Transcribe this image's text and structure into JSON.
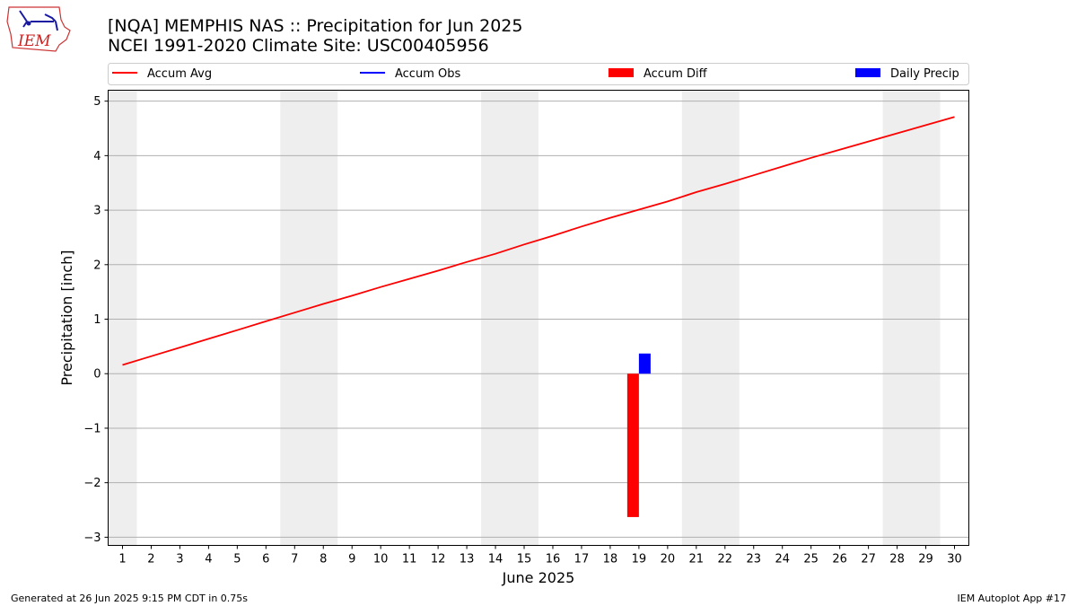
{
  "header": {
    "title_line1": "[NQA] MEMPHIS NAS :: Precipitation for Jun 2025",
    "title_line2": "NCEI 1991-2020 Climate Site: USC00405956",
    "logo_text": "IEM"
  },
  "footer": {
    "left": "Generated at 26 Jun 2025 9:15 PM CDT in 0.75s",
    "right": "IEM Autoplot App #17"
  },
  "chart_data": {
    "type": "bar",
    "xlabel": "June 2025",
    "ylabel": "Precipitation [inch]",
    "xlim": [
      0.5,
      30.5
    ],
    "ylim": [
      -3.15,
      5.2
    ],
    "yticks": [
      5,
      4,
      3,
      2,
      1,
      0,
      -1,
      -2,
      -3
    ],
    "ytick_labels": [
      "5",
      "4",
      "3",
      "2",
      "1",
      "0",
      "−1",
      "−2",
      "−3"
    ],
    "xticks": [
      1,
      2,
      3,
      4,
      5,
      6,
      7,
      8,
      9,
      10,
      11,
      12,
      13,
      14,
      15,
      16,
      17,
      18,
      19,
      20,
      21,
      22,
      23,
      24,
      25,
      26,
      27,
      28,
      29,
      30
    ],
    "grid": "y",
    "weekend_shading": [
      [
        0.5,
        1.5
      ],
      [
        6.5,
        8.5
      ],
      [
        13.5,
        15.5
      ],
      [
        20.5,
        22.5
      ],
      [
        27.5,
        29.5
      ]
    ],
    "legend": {
      "placement": "top",
      "entries": [
        {
          "label": "Accum Avg",
          "kind": "line",
          "color": "#ff0000"
        },
        {
          "label": "Accum Obs",
          "kind": "line",
          "color": "#0000ff"
        },
        {
          "label": "Accum Diff",
          "kind": "bar",
          "color": "#ff0000"
        },
        {
          "label": "Daily Precip",
          "kind": "bar",
          "color": "#0000ff"
        }
      ]
    },
    "series": [
      {
        "name": "Accum Avg",
        "kind": "line",
        "color": "#ff0000",
        "x": [
          1,
          2,
          3,
          4,
          5,
          6,
          7,
          8,
          9,
          10,
          11,
          12,
          13,
          14,
          15,
          16,
          17,
          18,
          19,
          20,
          21,
          22,
          23,
          24,
          25,
          26,
          27,
          28,
          29,
          30
        ],
        "values": [
          0.16,
          0.32,
          0.48,
          0.64,
          0.8,
          0.96,
          1.12,
          1.28,
          1.43,
          1.59,
          1.74,
          1.89,
          2.05,
          2.2,
          2.37,
          2.53,
          2.7,
          2.86,
          3.01,
          3.16,
          3.33,
          3.48,
          3.64,
          3.8,
          3.96,
          4.11,
          4.26,
          4.41,
          4.56,
          4.71
        ]
      },
      {
        "name": "Accum Diff",
        "kind": "bar",
        "color": "#ff0000",
        "x": [
          19
        ],
        "values": [
          -2.63
        ]
      },
      {
        "name": "Daily Precip",
        "kind": "bar",
        "color": "#0000ff",
        "x": [
          19
        ],
        "values": [
          0.37
        ]
      }
    ]
  }
}
